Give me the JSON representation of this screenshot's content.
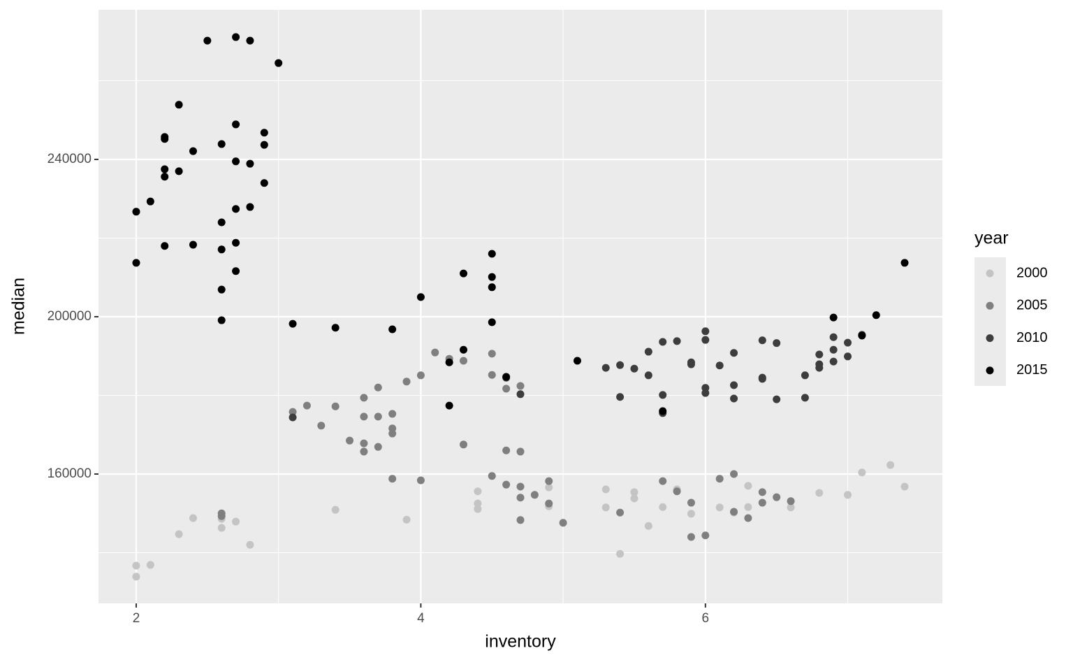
{
  "chart_data": {
    "type": "scatter",
    "x_label": "inventory",
    "y_label": "median",
    "legend_title": "year",
    "legend_position": "right",
    "xlim": [
      1.735,
      7.665
    ],
    "ylim": [
      127111,
      278044
    ],
    "xticks": [
      2,
      4,
      6
    ],
    "yticks": [
      160000,
      200000,
      240000
    ],
    "minor_xticks": [
      3,
      5,
      7
    ],
    "minor_yticks": [
      140000,
      180000,
      220000,
      260000
    ],
    "grid": true,
    "series": [
      {
        "name": "2000",
        "color": "#c4c4c4",
        "x": [
          2.0,
          2.0,
          2.1,
          2.3,
          2.4,
          2.6,
          2.6,
          2.7,
          2.8,
          3.4,
          3.9,
          4.4,
          4.4,
          4.4,
          4.9,
          4.9,
          5.3,
          5.3,
          5.4,
          5.5,
          5.5,
          5.6,
          5.7,
          5.8,
          5.9,
          6.1,
          6.2,
          6.3,
          6.3,
          6.6,
          6.8,
          7.0,
          7.1,
          7.3,
          7.4
        ],
        "values": [
          136700,
          133900,
          136900,
          144700,
          148800,
          148600,
          146300,
          147900,
          142000,
          150900,
          148400,
          155600,
          152500,
          151100,
          151800,
          156600,
          156100,
          151500,
          139700,
          155400,
          153800,
          146800,
          151600,
          156100,
          149900,
          151500,
          150200,
          157000,
          151600,
          151500,
          155200,
          154700,
          160400,
          162300,
          156800
        ]
      },
      {
        "name": "2005",
        "color": "#7f7f7f",
        "x": [
          3.1,
          3.2,
          3.3,
          3.4,
          3.5,
          3.6,
          3.6,
          3.6,
          3.6,
          3.7,
          3.7,
          3.7,
          3.8,
          3.8,
          3.8,
          3.8,
          3.9,
          4.0,
          4.0,
          4.1,
          4.2,
          4.3,
          4.3,
          4.5,
          4.5,
          4.5,
          4.6,
          4.6,
          4.7,
          4.7,
          4.6,
          4.7,
          4.7,
          4.7,
          4.8,
          4.9,
          4.9,
          5.0,
          2.6,
          2.6,
          5.4,
          5.7,
          5.8,
          5.9,
          5.9,
          6.0,
          6.1,
          6.2,
          6.2,
          6.3,
          6.4,
          6.4,
          6.5,
          6.6
        ],
        "values": [
          175800,
          177400,
          172300,
          177200,
          168500,
          179400,
          174600,
          167800,
          165700,
          182000,
          174600,
          166900,
          175300,
          171600,
          170300,
          158800,
          183500,
          185100,
          158400,
          190900,
          189300,
          188800,
          167500,
          190600,
          185200,
          159500,
          181700,
          166000,
          182400,
          165700,
          157300,
          156800,
          154000,
          148300,
          154700,
          158200,
          152500,
          147600,
          150000,
          149300,
          150200,
          158200,
          155600,
          152700,
          144000,
          144400,
          158800,
          160000,
          150400,
          148800,
          155400,
          152700,
          154100,
          153100
        ]
      },
      {
        "name": "2010",
        "color": "#3d3d3d",
        "x": [
          3.1,
          4.6,
          5.3,
          5.4,
          5.4,
          5.5,
          5.6,
          5.6,
          5.7,
          5.7,
          5.7,
          5.8,
          5.9,
          5.9,
          6.0,
          6.0,
          6.0,
          6.0,
          6.1,
          6.2,
          6.2,
          6.2,
          6.4,
          6.4,
          6.4,
          6.5,
          6.5,
          6.7,
          6.7,
          6.8,
          6.8,
          6.8,
          6.9,
          6.9,
          6.9,
          7.0,
          7.0,
          7.1,
          4.7
        ],
        "values": [
          174400,
          184500,
          187000,
          187700,
          179600,
          186800,
          191100,
          185100,
          193600,
          180100,
          175500,
          193800,
          188400,
          187900,
          196300,
          194100,
          181900,
          180600,
          187600,
          190800,
          182600,
          179200,
          194000,
          184500,
          184200,
          193300,
          179000,
          185100,
          179400,
          190400,
          187900,
          187000,
          194800,
          191600,
          188600,
          193400,
          189900,
          195400,
          180300
        ]
      },
      {
        "name": "2015",
        "color": "#000000",
        "x": [
          2.5,
          2.7,
          2.8,
          3.0,
          2.3,
          2.2,
          2.2,
          2.7,
          2.9,
          2.4,
          2.6,
          2.9,
          2.7,
          2.8,
          2.2,
          2.3,
          2.2,
          2.9,
          2.0,
          2.1,
          2.8,
          2.7,
          2.6,
          2.2,
          2.4,
          2.7,
          2.6,
          2.7,
          2.0,
          2.6,
          2.6,
          3.1,
          3.4,
          3.8,
          4.0,
          4.3,
          4.5,
          4.5,
          4.5,
          4.5,
          4.3,
          4.2,
          4.2,
          4.6,
          5.1,
          5.7,
          7.4,
          7.2,
          6.9,
          7.1
        ],
        "values": [
          270200,
          271100,
          270200,
          264500,
          253900,
          245700,
          245200,
          248900,
          246800,
          242100,
          243900,
          243700,
          239500,
          238900,
          237500,
          237000,
          235600,
          234000,
          226700,
          229300,
          227900,
          227400,
          224000,
          218000,
          218300,
          218800,
          217100,
          211600,
          213700,
          206900,
          199100,
          198200,
          197200,
          196800,
          205000,
          211000,
          216000,
          210100,
          207500,
          198600,
          191600,
          188400,
          177400,
          184700,
          188800,
          176000,
          213700,
          200400,
          199800,
          195200
        ]
      }
    ]
  }
}
